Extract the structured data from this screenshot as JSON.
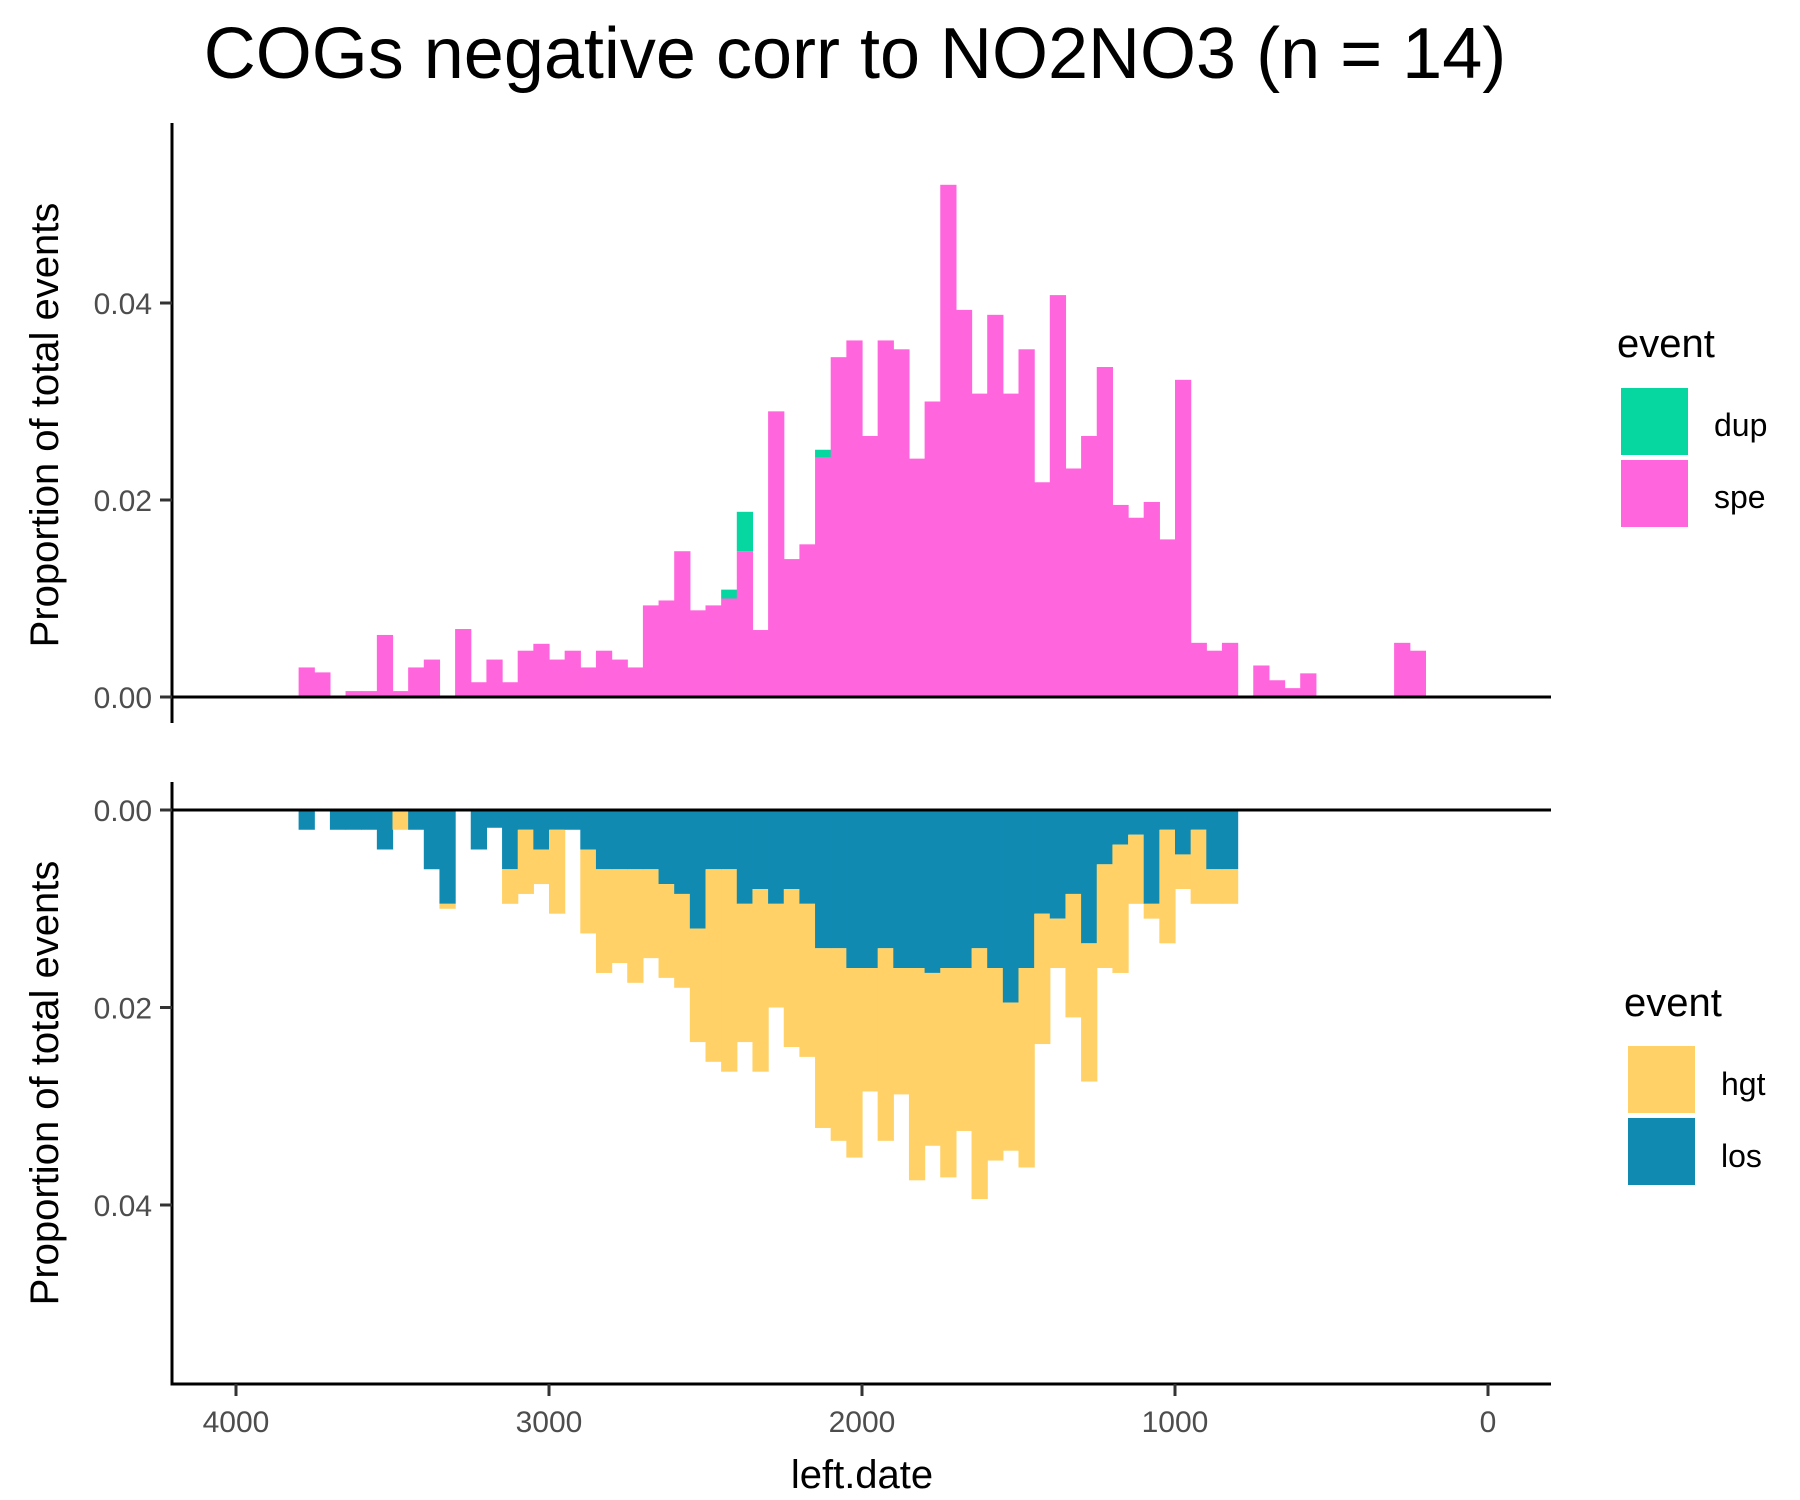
{
  "colors": {
    "dup": "#06D6A0",
    "spe": "#FF66DD",
    "hgt": "#FFD166",
    "los": "#118AB2"
  },
  "chart_data": [
    {
      "type": "bar",
      "panel": "top",
      "stacked": true,
      "title": "COGs negative corr to NO2NO3 (n = 14)",
      "xlabel": "left.date",
      "ylabel": "Proportion of total events",
      "xlim": [
        4200,
        -200
      ],
      "x_reversed": true,
      "ylim": [
        0,
        0.0545
      ],
      "yticks": [
        "0.00",
        "0.02",
        "0.04"
      ],
      "ytick_values": [
        0,
        0.02,
        0.04
      ],
      "bin_width": 50,
      "x": [
        3775,
        3725,
        3675,
        3625,
        3575,
        3525,
        3475,
        3425,
        3375,
        3325,
        3275,
        3225,
        3175,
        3125,
        3075,
        3025,
        2975,
        2925,
        2875,
        2825,
        2775,
        2725,
        2675,
        2625,
        2575,
        2525,
        2475,
        2425,
        2375,
        2325,
        2275,
        2225,
        2175,
        2125,
        2075,
        2025,
        1975,
        1925,
        1875,
        1825,
        1775,
        1725,
        1675,
        1625,
        1575,
        1525,
        1475,
        1425,
        1375,
        1325,
        1275,
        1225,
        1175,
        1125,
        1075,
        1025,
        975,
        925,
        875,
        825,
        775,
        725,
        675,
        625,
        575,
        525,
        475,
        425,
        375,
        325,
        275,
        225,
        175
      ],
      "series": [
        {
          "name": "spe",
          "values": [
            0.003,
            0.0025,
            0,
            0.0006,
            0.0006,
            0.0063,
            0.0006,
            0.003,
            0.0038,
            0,
            0.0069,
            0.0015,
            0.0038,
            0.0015,
            0.0047,
            0.0054,
            0.0038,
            0.0047,
            0.003,
            0.0047,
            0.0038,
            0.003,
            0.0093,
            0.0098,
            0.0148,
            0.0088,
            0.0093,
            0.01,
            0.0148,
            0.0068,
            0.029,
            0.014,
            0.0155,
            0.0243,
            0.0345,
            0.0362,
            0.0265,
            0.0362,
            0.0353,
            0.0242,
            0.03,
            0.052,
            0.0393,
            0.0308,
            0.0388,
            0.0308,
            0.0353,
            0.0218,
            0.0408,
            0.0232,
            0.0265,
            0.0335,
            0.0195,
            0.0182,
            0.0198,
            0.016,
            0.0322,
            0.0055,
            0.0047,
            0.0055,
            0,
            0.0032,
            0.0017,
            0.0009,
            0.0024,
            0,
            0,
            0,
            0,
            0,
            0.0055,
            0.0047,
            0
          ]
        },
        {
          "name": "dup",
          "values": [
            0,
            0,
            0,
            0,
            0,
            0,
            0,
            0,
            0,
            0,
            0,
            0,
            0,
            0,
            0,
            0,
            0,
            0,
            0,
            0,
            0,
            0,
            0,
            0,
            0,
            0,
            0,
            0.0009,
            0.004,
            0,
            0,
            0,
            0,
            0.0008,
            0,
            0,
            0,
            0,
            0,
            0,
            0,
            0,
            0,
            0,
            0,
            0,
            0,
            0,
            0,
            0,
            0,
            0,
            0,
            0,
            0,
            0,
            0,
            0,
            0,
            0,
            0,
            0,
            0,
            0,
            0,
            0,
            0,
            0,
            0,
            0,
            0,
            0,
            0
          ]
        }
      ],
      "legend": {
        "title": "event",
        "entries": [
          "dup",
          "spe"
        ],
        "position": "right"
      }
    },
    {
      "type": "bar",
      "panel": "bottom",
      "stacked": true,
      "y_reversed": true,
      "xlabel": "left.date",
      "ylabel": "Proportion of total events",
      "xlim": [
        4200,
        -200
      ],
      "x_reversed": true,
      "ylim": [
        0,
        0.0555
      ],
      "yticks": [
        "0.00",
        "0.02",
        "0.04"
      ],
      "ytick_values": [
        0,
        0.02,
        0.04
      ],
      "xticks": [
        "4000",
        "3000",
        "2000",
        "1000",
        "0"
      ],
      "xtick_values": [
        4000,
        3000,
        2000,
        1000,
        0
      ],
      "bin_width": 50,
      "x": [
        3775,
        3725,
        3675,
        3625,
        3575,
        3525,
        3475,
        3425,
        3375,
        3325,
        3275,
        3225,
        3175,
        3125,
        3075,
        3025,
        2975,
        2925,
        2875,
        2825,
        2775,
        2725,
        2675,
        2625,
        2575,
        2525,
        2475,
        2425,
        2375,
        2325,
        2275,
        2225,
        2175,
        2125,
        2075,
        2025,
        1975,
        1925,
        1875,
        1825,
        1775,
        1725,
        1675,
        1625,
        1575,
        1525,
        1475,
        1425,
        1375,
        1325,
        1275,
        1225,
        1175,
        1125,
        1075,
        1025,
        975,
        925,
        875,
        825
      ],
      "series": [
        {
          "name": "los",
          "values": [
            0.002,
            0,
            0.002,
            0.002,
            0.002,
            0.004,
            0,
            0.002,
            0.006,
            0.0095,
            0,
            0.004,
            0.0018,
            0.006,
            0.002,
            0.004,
            0.002,
            0.002,
            0.004,
            0.006,
            0.006,
            0.006,
            0.006,
            0.0075,
            0.0085,
            0.012,
            0.006,
            0.006,
            0.0095,
            0.008,
            0.0095,
            0.008,
            0.0095,
            0.014,
            0.014,
            0.016,
            0.016,
            0.014,
            0.016,
            0.016,
            0.0165,
            0.016,
            0.016,
            0.014,
            0.016,
            0.0195,
            0.016,
            0.0105,
            0.011,
            0.0085,
            0.0135,
            0.0055,
            0.0035,
            0.0025,
            0.0095,
            0.002,
            0.0045,
            0.002,
            0.006,
            0.006
          ]
        },
        {
          "name": "hgt",
          "values": [
            0,
            0,
            0,
            0,
            0,
            0,
            0.002,
            0,
            0,
            0.0005,
            0,
            0,
            0,
            0.0035,
            0.0065,
            0.0035,
            0.0085,
            0,
            0.0085,
            0.0105,
            0.0095,
            0.0115,
            0.009,
            0.0095,
            0.0095,
            0.0115,
            0.0195,
            0.0205,
            0.014,
            0.0185,
            0.0105,
            0.016,
            0.0155,
            0.0182,
            0.0195,
            0.0192,
            0.0125,
            0.0195,
            0.0128,
            0.0215,
            0.0175,
            0.0212,
            0.0165,
            0.0254,
            0.0195,
            0.015,
            0.0202,
            0.0132,
            0.005,
            0.0125,
            0.014,
            0.0105,
            0.013,
            0.007,
            0.0015,
            0.0115,
            0.0035,
            0.0075,
            0.0035,
            0.0035
          ]
        }
      ],
      "legend": {
        "title": "event",
        "entries": [
          "hgt",
          "los"
        ],
        "position": "right"
      }
    }
  ]
}
